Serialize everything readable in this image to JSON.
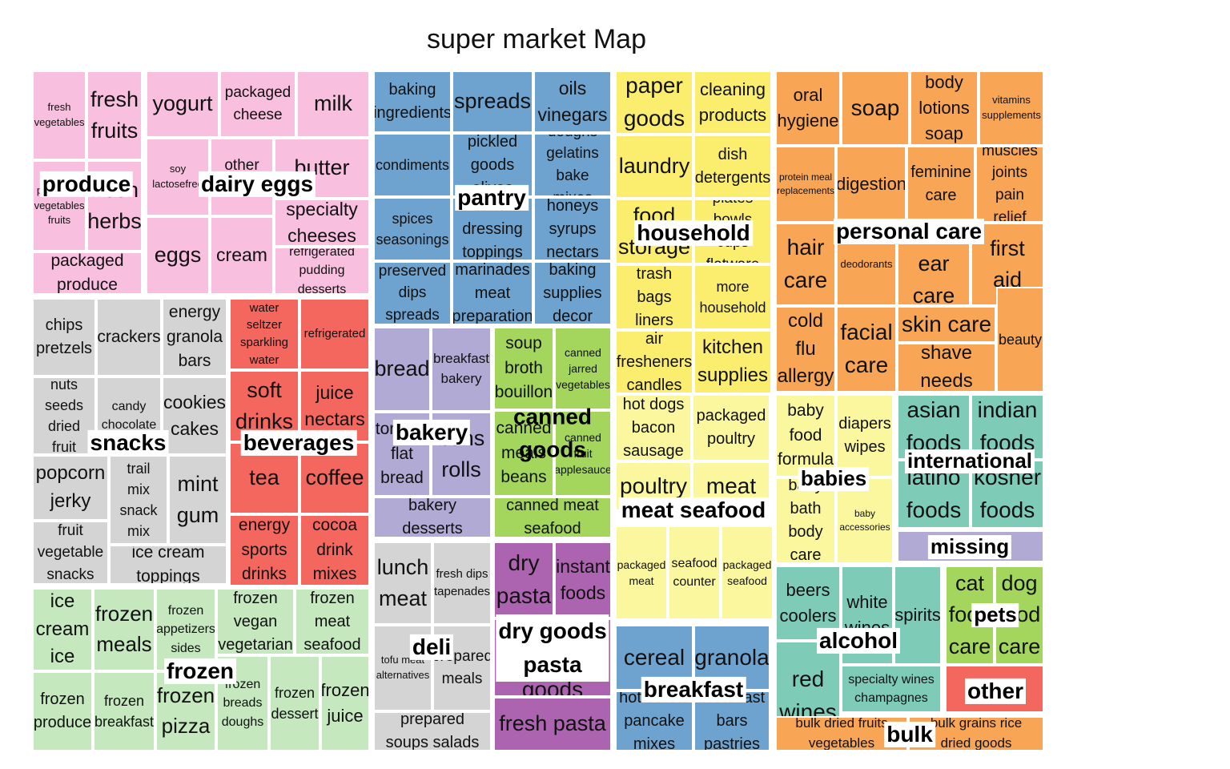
{
  "chart_data": {
    "type": "treemap",
    "title": "super market Map",
    "groups": [
      {
        "name": "produce",
        "color": "#f8bfdf",
        "items": [
          {
            "name": "fresh vegetables",
            "value": 1.0
          },
          {
            "name": "fresh fruits",
            "value": 1.0
          },
          {
            "name": "packaged vegetables fruits",
            "value": 1.1
          },
          {
            "name": "fresh herbs",
            "value": 1.1
          },
          {
            "name": "packaged produce",
            "value": 0.8
          }
        ]
      },
      {
        "name": "dairy eggs",
        "color": "#f8bfdf",
        "items": [
          {
            "name": "yogurt",
            "value": 1.0
          },
          {
            "name": "packaged cheese",
            "value": 1.0
          },
          {
            "name": "milk",
            "value": 1.0
          },
          {
            "name": "soy lactosefree",
            "value": 0.85
          },
          {
            "name": "other cheeses",
            "value": 0.85
          },
          {
            "name": "butter",
            "value": 0.75
          },
          {
            "name": "specialty cheeses",
            "value": 0.75
          },
          {
            "name": "eggs",
            "value": 0.9
          },
          {
            "name": "cream",
            "value": 0.9
          },
          {
            "name": "refrigerated pudding desserts",
            "value": 0.9
          }
        ]
      },
      {
        "name": "pantry",
        "color": "#6fa3cf",
        "items": [
          {
            "name": "baking ingredients",
            "value": 1.0
          },
          {
            "name": "spreads",
            "value": 1.0
          },
          {
            "name": "oils vinegars",
            "value": 1.0
          },
          {
            "name": "condiments",
            "value": 1.0
          },
          {
            "name": "pickled goods olives",
            "value": 1.0
          },
          {
            "name": "doughs gelatins bake mixes",
            "value": 1.0
          },
          {
            "name": "spices seasonings",
            "value": 1.0
          },
          {
            "name": "salad dressing toppings",
            "value": 1.0
          },
          {
            "name": "honeys syrups nectars",
            "value": 1.0
          },
          {
            "name": "preserved dips spreads",
            "value": 1.0
          },
          {
            "name": "marinades meat preparation",
            "value": 1.0
          },
          {
            "name": "baking supplies decor",
            "value": 1.0
          }
        ]
      },
      {
        "name": "household",
        "color": "#fbee6f",
        "items": [
          {
            "name": "paper goods",
            "value": 1.0
          },
          {
            "name": "cleaning products",
            "value": 1.0
          },
          {
            "name": "laundry",
            "value": 1.0
          },
          {
            "name": "dish detergents",
            "value": 1.0
          },
          {
            "name": "food storage",
            "value": 1.0
          },
          {
            "name": "plates bowls cups flatware",
            "value": 1.0
          },
          {
            "name": "trash bags liners",
            "value": 1.0
          },
          {
            "name": "more household",
            "value": 1.0
          },
          {
            "name": "air fresheners candles",
            "value": 1.0
          },
          {
            "name": "kitchen supplies",
            "value": 1.0
          }
        ]
      },
      {
        "name": "personal care",
        "color": "#f8a656",
        "items": [
          {
            "name": "oral hygiene",
            "value": 1.0
          },
          {
            "name": "soap",
            "value": 1.0
          },
          {
            "name": "body lotions soap",
            "value": 1.0
          },
          {
            "name": "vitamins supplements",
            "value": 1.0
          },
          {
            "name": "protein meal replacements",
            "value": 1.0
          },
          {
            "name": "digestion",
            "value": 1.0
          },
          {
            "name": "feminine care",
            "value": 1.0
          },
          {
            "name": "muscles joints pain relief",
            "value": 1.0
          },
          {
            "name": "hair care",
            "value": 1.0
          },
          {
            "name": "deodorants",
            "value": 1.0
          },
          {
            "name": "eye ear care",
            "value": 1.0
          },
          {
            "name": "first aid",
            "value": 1.0
          },
          {
            "name": "cold flu allergy",
            "value": 1.0
          },
          {
            "name": "facial care",
            "value": 1.0
          },
          {
            "name": "skin care",
            "value": 1.0
          },
          {
            "name": "shave needs",
            "value": 1.0
          },
          {
            "name": "beauty",
            "value": 1.0
          }
        ]
      },
      {
        "name": "snacks",
        "color": "#d4d4d4",
        "items": [
          {
            "name": "chips pretzels",
            "value": 1.0
          },
          {
            "name": "crackers",
            "value": 1.0
          },
          {
            "name": "energy granola bars",
            "value": 1.0
          },
          {
            "name": "nuts seeds dried fruit",
            "value": 1.0
          },
          {
            "name": "candy chocolate",
            "value": 1.0
          },
          {
            "name": "cookies cakes",
            "value": 1.0
          },
          {
            "name": "popcorn jerky",
            "value": 1.0
          },
          {
            "name": "trail mix snack mix",
            "value": 1.0
          },
          {
            "name": "mint gum",
            "value": 1.0
          },
          {
            "name": "fruit vegetable snacks",
            "value": 1.0
          },
          {
            "name": "ice cream toppings",
            "value": 1.0
          }
        ]
      },
      {
        "name": "beverages",
        "color": "#f4675f",
        "items": [
          {
            "name": "water seltzer sparkling water",
            "value": 1.0
          },
          {
            "name": "refrigerated",
            "value": 1.0
          },
          {
            "name": "soft drinks",
            "value": 1.0
          },
          {
            "name": "juice nectars",
            "value": 1.0
          },
          {
            "name": "tea",
            "value": 1.0
          },
          {
            "name": "coffee",
            "value": 1.0
          },
          {
            "name": "energy sports drinks",
            "value": 1.0
          },
          {
            "name": "cocoa drink mixes",
            "value": 1.0
          }
        ]
      },
      {
        "name": "bakery",
        "color": "#b1aad4",
        "items": [
          {
            "name": "bread",
            "value": 1.0
          },
          {
            "name": "breakfast bakery",
            "value": 1.0
          },
          {
            "name": "tortillas flat bread",
            "value": 1.0
          },
          {
            "name": "buns rolls",
            "value": 1.0
          },
          {
            "name": "bakery desserts",
            "value": 1.0
          }
        ]
      },
      {
        "name": "canned goods",
        "color": "#a4d65d",
        "items": [
          {
            "name": "soup broth bouillon",
            "value": 1.0
          },
          {
            "name": "canned jarred vegetables",
            "value": 1.0
          },
          {
            "name": "canned meals beans",
            "value": 1.0
          },
          {
            "name": "canned fruit applesauce",
            "value": 1.0
          },
          {
            "name": "canned meat seafood",
            "value": 1.0
          }
        ]
      },
      {
        "name": "deli",
        "color": "#d4d4d4",
        "items": [
          {
            "name": "lunch meat",
            "value": 1.0
          },
          {
            "name": "fresh dips tapenades",
            "value": 1.0
          },
          {
            "name": "tofu meat alternatives",
            "value": 1.0
          },
          {
            "name": "prepared meals",
            "value": 1.0
          },
          {
            "name": "prepared soups salads",
            "value": 1.0
          }
        ]
      },
      {
        "name": "dry goods pasta",
        "color": "#ad64b0",
        "items": [
          {
            "name": "dry pasta",
            "value": 1.0
          },
          {
            "name": "instant foods",
            "value": 1.0
          },
          {
            "name": "grains rice dried goods",
            "value": 1.0
          },
          {
            "name": "fresh pasta",
            "value": 1.0
          }
        ]
      },
      {
        "name": "meat seafood",
        "color": "#fbf79f",
        "items": [
          {
            "name": "hot dogs bacon sausage",
            "value": 1.0
          },
          {
            "name": "packaged poultry",
            "value": 1.0
          },
          {
            "name": "poultry",
            "value": 1.0
          },
          {
            "name": "meat",
            "value": 1.0
          },
          {
            "name": "packaged meat",
            "value": 1.0
          },
          {
            "name": "seafood counter",
            "value": 1.0
          },
          {
            "name": "packaged seafood",
            "value": 1.0
          }
        ]
      },
      {
        "name": "babies",
        "color": "#fbf79f",
        "items": [
          {
            "name": "baby food formula",
            "value": 1.0
          },
          {
            "name": "diapers wipes",
            "value": 1.0
          },
          {
            "name": "baby bath body care",
            "value": 1.0
          },
          {
            "name": "baby accessories",
            "value": 1.0
          }
        ]
      },
      {
        "name": "international",
        "color": "#7ecbb8",
        "items": [
          {
            "name": "asian foods",
            "value": 1.0
          },
          {
            "name": "indian foods",
            "value": 1.0
          },
          {
            "name": "latino foods",
            "value": 1.0
          },
          {
            "name": "kosher foods",
            "value": 1.0
          }
        ]
      },
      {
        "name": "missing",
        "color": "#b1aad4",
        "items": [
          {
            "name": "missing",
            "value": 1.0
          }
        ]
      },
      {
        "name": "frozen",
        "color": "#c5e8bf",
        "items": [
          {
            "name": "ice cream ice",
            "value": 1.0
          },
          {
            "name": "frozen meals",
            "value": 1.0
          },
          {
            "name": "frozen appetizers sides",
            "value": 1.0
          },
          {
            "name": "frozen vegan vegetarian",
            "value": 1.0
          },
          {
            "name": "frozen meat seafood",
            "value": 1.0
          },
          {
            "name": "frozen produce",
            "value": 1.0
          },
          {
            "name": "frozen breakfast",
            "value": 1.0
          },
          {
            "name": "frozen pizza",
            "value": 1.0
          },
          {
            "name": "frozen breads doughs",
            "value": 1.0
          },
          {
            "name": "frozen dessert",
            "value": 1.0
          },
          {
            "name": "frozen juice",
            "value": 1.0
          }
        ]
      },
      {
        "name": "breakfast",
        "color": "#6fa3cf",
        "items": [
          {
            "name": "cereal",
            "value": 1.0
          },
          {
            "name": "granola",
            "value": 1.0
          },
          {
            "name": "hot cereal pancake mixes",
            "value": 1.0
          },
          {
            "name": "breakfast bars pastries",
            "value": 1.0
          }
        ]
      },
      {
        "name": "alcohol",
        "color": "#7ecbb8",
        "items": [
          {
            "name": "beers coolers",
            "value": 1.0
          },
          {
            "name": "white wines",
            "value": 1.0
          },
          {
            "name": "spirits",
            "value": 1.0
          },
          {
            "name": "red wines",
            "value": 1.0
          },
          {
            "name": "specialty wines champagnes",
            "value": 1.0
          }
        ]
      },
      {
        "name": "pets",
        "color": "#a4d65d",
        "items": [
          {
            "name": "cat food care",
            "value": 1.0
          },
          {
            "name": "dog food care",
            "value": 1.0
          }
        ]
      },
      {
        "name": "other",
        "color": "#f4675f",
        "items": [
          {
            "name": "other",
            "value": 1.0
          }
        ]
      },
      {
        "name": "bulk",
        "color": "#f8a656",
        "items": [
          {
            "name": "bulk dried fruits vegetables",
            "value": 1.0
          },
          {
            "name": "bulk grains rice dried goods",
            "value": 1.0
          }
        ]
      }
    ]
  }
}
